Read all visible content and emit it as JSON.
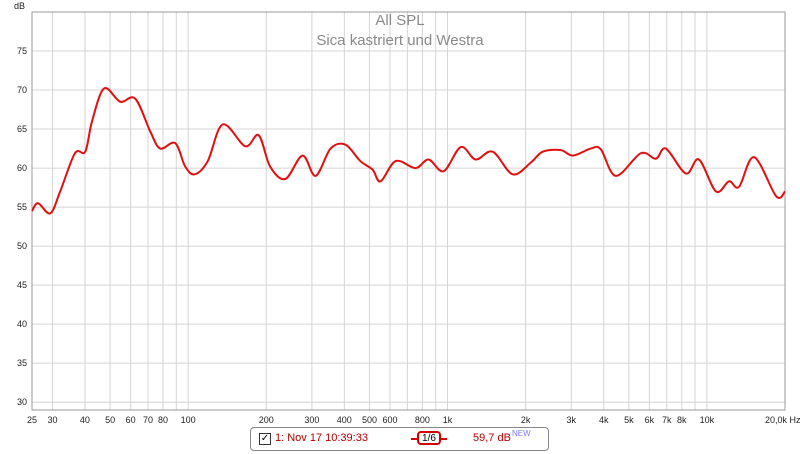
{
  "chart_data": {
    "type": "line",
    "title": "All SPL",
    "subtitle": "Sica kastriert und Westra",
    "xlabel": "Hz",
    "ylabel": "dB",
    "xscale": "log",
    "xlim": [
      25,
      20000
    ],
    "ylim": [
      29,
      80
    ],
    "grid": true,
    "y_ticks": [
      30,
      35,
      40,
      45,
      50,
      55,
      60,
      65,
      70,
      75
    ],
    "x_gridlines": [
      30,
      40,
      50,
      60,
      70,
      80,
      90,
      100,
      200,
      300,
      400,
      500,
      600,
      700,
      800,
      900,
      1000,
      2000,
      3000,
      4000,
      5000,
      6000,
      7000,
      8000,
      9000,
      10000,
      20000
    ],
    "x_tick_labels": [
      {
        "f": 25,
        "label": "25"
      },
      {
        "f": 30,
        "label": "30"
      },
      {
        "f": 40,
        "label": "40"
      },
      {
        "f": 50,
        "label": "50"
      },
      {
        "f": 60,
        "label": "60"
      },
      {
        "f": 70,
        "label": "70"
      },
      {
        "f": 80,
        "label": "80"
      },
      {
        "f": 100,
        "label": "100"
      },
      {
        "f": 200,
        "label": "200"
      },
      {
        "f": 300,
        "label": "300"
      },
      {
        "f": 400,
        "label": "400"
      },
      {
        "f": 500,
        "label": "500"
      },
      {
        "f": 600,
        "label": "600"
      },
      {
        "f": 800,
        "label": "800"
      },
      {
        "f": 1000,
        "label": "1k"
      },
      {
        "f": 2000,
        "label": "2k"
      },
      {
        "f": 3000,
        "label": "3k"
      },
      {
        "f": 4000,
        "label": "4k"
      },
      {
        "f": 5000,
        "label": "5k"
      },
      {
        "f": 6000,
        "label": "6k"
      },
      {
        "f": 7000,
        "label": "7k"
      },
      {
        "f": 8000,
        "label": "8k"
      },
      {
        "f": 10000,
        "label": "10k"
      },
      {
        "f": 20000,
        "label": "20,0k Hz"
      }
    ],
    "series": [
      {
        "name": "1: Nov 17 10:39:33",
        "color": "#e01010",
        "x": [
          25,
          26.4,
          29.4,
          32.1,
          36.6,
          40.1,
          42.6,
          47.4,
          54.7,
          62.5,
          71.4,
          78,
          89.1,
          97.4,
          106,
          119,
          136,
          166,
          187,
          207,
          237,
          276,
          310,
          354,
          404,
          461,
          514,
          552,
          631,
          753,
          845,
          966,
          1125,
          1283,
          1493,
          1783,
          2093,
          2328,
          2734,
          3041,
          3564,
          3899,
          4456,
          5559,
          6352,
          6948,
          8297,
          9312,
          10838,
          12165,
          13299,
          15202,
          18488,
          20000
        ],
        "y": [
          54.5,
          55.5,
          54.2,
          57,
          61.9,
          62.1,
          66,
          70.2,
          68.5,
          68.9,
          64.7,
          62.5,
          63.2,
          60.2,
          59.2,
          60.9,
          65.6,
          62.8,
          64.2,
          60.2,
          58.6,
          61.6,
          59,
          62.5,
          63,
          60.9,
          59.8,
          58.3,
          60.9,
          60,
          61.1,
          59.6,
          62.7,
          61.1,
          62.1,
          59.2,
          60.7,
          62.1,
          62.3,
          61.6,
          62.5,
          62.4,
          59,
          61.9,
          61.2,
          62.5,
          59.3,
          61.1,
          57,
          58.3,
          57.6,
          61.4,
          56.4,
          57
        ]
      }
    ]
  },
  "legend": {
    "checked": "✓",
    "name": "1: Nov 17 10:39:33",
    "smoothing": "1/6",
    "value": "59,7 dB",
    "badge": "NEW"
  }
}
